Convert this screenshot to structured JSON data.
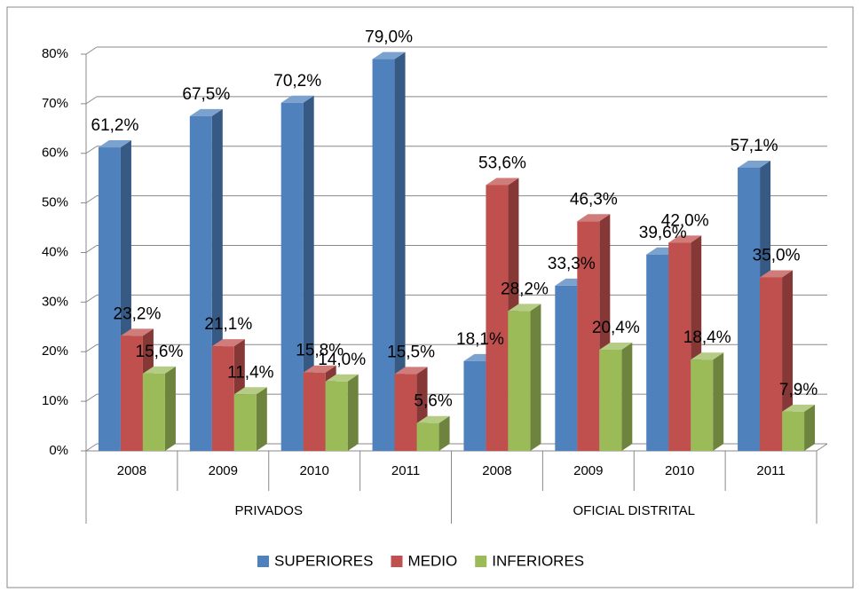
{
  "chart_data": {
    "type": "bar3d",
    "groups": [
      {
        "name": "PRIVADOS",
        "categories": [
          "2008",
          "2009",
          "2010",
          "2011"
        ]
      },
      {
        "name": "OFICIAL DISTRITAL",
        "categories": [
          "2008",
          "2009",
          "2010",
          "2011"
        ]
      }
    ],
    "series": [
      {
        "name": "SUPERIORES",
        "color": "#4f81bd",
        "values": [
          61.2,
          67.5,
          70.2,
          79.0,
          18.1,
          33.3,
          39.6,
          57.1
        ],
        "value_labels": [
          "61,2%",
          "67,5%",
          "70,2%",
          "79,0%",
          "18,1%",
          "33,3%",
          "39,6%",
          "57,1%"
        ]
      },
      {
        "name": "MEDIO",
        "color": "#c0504d",
        "values": [
          23.2,
          21.1,
          15.8,
          15.5,
          53.6,
          46.3,
          42.0,
          35.0
        ],
        "value_labels": [
          "23,2%",
          "21,1%",
          "15,8%",
          "15,5%",
          "53,6%",
          "46,3%",
          "42,0%",
          "35,0%"
        ]
      },
      {
        "name": "INFERIORES",
        "color": "#9bbb59",
        "values": [
          15.6,
          11.4,
          14.0,
          5.6,
          28.2,
          20.4,
          18.4,
          7.9
        ],
        "value_labels": [
          "15,6%",
          "11,4%",
          "14,0%",
          "5,6%",
          "28,2%",
          "20,4%",
          "18,4%",
          "7,9%"
        ]
      }
    ],
    "ylim": [
      0,
      80
    ],
    "yticks": [
      {
        "value": 0,
        "label": "0%"
      },
      {
        "value": 10,
        "label": "10%"
      },
      {
        "value": 20,
        "label": "20%"
      },
      {
        "value": 30,
        "label": "30%"
      },
      {
        "value": 40,
        "label": "40%"
      },
      {
        "value": 50,
        "label": "50%"
      },
      {
        "value": 60,
        "label": "60%"
      },
      {
        "value": 70,
        "label": "70%"
      },
      {
        "value": 80,
        "label": "80%"
      }
    ],
    "grid": true,
    "legend": "bottom"
  }
}
